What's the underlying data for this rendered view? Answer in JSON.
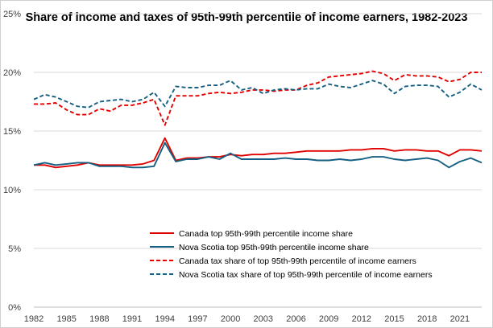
{
  "chart_data": {
    "type": "line",
    "title": "Share of income and taxes of 95th-99th percentile of income earners, 1982-2023",
    "xlabel": "",
    "ylabel": "",
    "x": [
      1982,
      1983,
      1984,
      1985,
      1986,
      1987,
      1988,
      1989,
      1990,
      1991,
      1992,
      1993,
      1994,
      1995,
      1996,
      1997,
      1998,
      1999,
      2000,
      2001,
      2002,
      2003,
      2004,
      2005,
      2006,
      2007,
      2008,
      2009,
      2010,
      2011,
      2012,
      2013,
      2014,
      2015,
      2016,
      2017,
      2018,
      2019,
      2020,
      2021,
      2022,
      2023
    ],
    "x_tick_labels": [
      "1982",
      "1985",
      "1988",
      "1991",
      "1994",
      "1997",
      "2000",
      "2003",
      "2006",
      "2009",
      "2012",
      "2015",
      "2018",
      "2021"
    ],
    "x_tick_values": [
      1982,
      1985,
      1988,
      1991,
      1994,
      1997,
      2000,
      2003,
      2006,
      2009,
      2012,
      2015,
      2018,
      2021
    ],
    "y_ticks": [
      0,
      5,
      10,
      15,
      20,
      25
    ],
    "y_tick_labels": [
      "0%",
      "5%",
      "10%",
      "15%",
      "20%",
      "25%"
    ],
    "ylim": [
      0,
      25
    ],
    "grid": "horizontal",
    "legend_position": "bottom-center",
    "series": [
      {
        "name": "Canada top 95th-99th percentile income share",
        "color": "#e00000",
        "style": "solid",
        "values": [
          12.1,
          12.1,
          11.9,
          12.0,
          12.1,
          12.3,
          12.1,
          12.1,
          12.1,
          12.1,
          12.2,
          12.5,
          14.4,
          12.5,
          12.7,
          12.7,
          12.8,
          12.8,
          13.0,
          12.9,
          13.0,
          13.0,
          13.1,
          13.1,
          13.2,
          13.3,
          13.3,
          13.3,
          13.3,
          13.4,
          13.4,
          13.5,
          13.5,
          13.3,
          13.4,
          13.4,
          13.3,
          13.3,
          12.9,
          13.4,
          13.4,
          13.3
        ]
      },
      {
        "name": "Nova Scotia top 95th-99th percentile income share",
        "color": "#156082",
        "style": "solid",
        "values": [
          12.1,
          12.3,
          12.1,
          12.2,
          12.3,
          12.3,
          12.0,
          12.0,
          12.0,
          11.9,
          11.9,
          12.0,
          14.0,
          12.4,
          12.6,
          12.6,
          12.8,
          12.6,
          13.1,
          12.6,
          12.6,
          12.6,
          12.6,
          12.7,
          12.6,
          12.6,
          12.5,
          12.5,
          12.6,
          12.5,
          12.6,
          12.8,
          12.8,
          12.6,
          12.5,
          12.6,
          12.7,
          12.5,
          11.9,
          12.4,
          12.7,
          12.3
        ]
      },
      {
        "name": "Canada tax share of top 95th-99th percentile of income earners",
        "color": "#e00000",
        "style": "dashed",
        "values": [
          17.3,
          17.3,
          17.4,
          16.8,
          16.4,
          16.4,
          16.9,
          16.7,
          17.2,
          17.2,
          17.4,
          17.7,
          15.5,
          18.0,
          18.0,
          18.0,
          18.2,
          18.3,
          18.2,
          18.3,
          18.5,
          18.5,
          18.4,
          18.5,
          18.5,
          18.9,
          19.1,
          19.6,
          19.7,
          19.8,
          19.9,
          20.1,
          19.9,
          19.3,
          19.8,
          19.7,
          19.7,
          19.6,
          19.2,
          19.4,
          20.0,
          20.0
        ]
      },
      {
        "name": "Nova Scotia tax share of top 95th-99th percentile of income earners",
        "color": "#156082",
        "style": "dashed",
        "values": [
          17.7,
          18.1,
          17.9,
          17.5,
          17.1,
          17.0,
          17.5,
          17.6,
          17.7,
          17.5,
          17.7,
          18.3,
          17.1,
          18.8,
          18.7,
          18.7,
          18.9,
          18.9,
          19.3,
          18.5,
          18.7,
          18.2,
          18.5,
          18.6,
          18.5,
          18.6,
          18.6,
          19.0,
          18.8,
          18.7,
          19.0,
          19.3,
          19.0,
          18.2,
          18.8,
          18.9,
          18.9,
          18.8,
          17.9,
          18.3,
          19.0,
          18.5
        ]
      }
    ]
  }
}
